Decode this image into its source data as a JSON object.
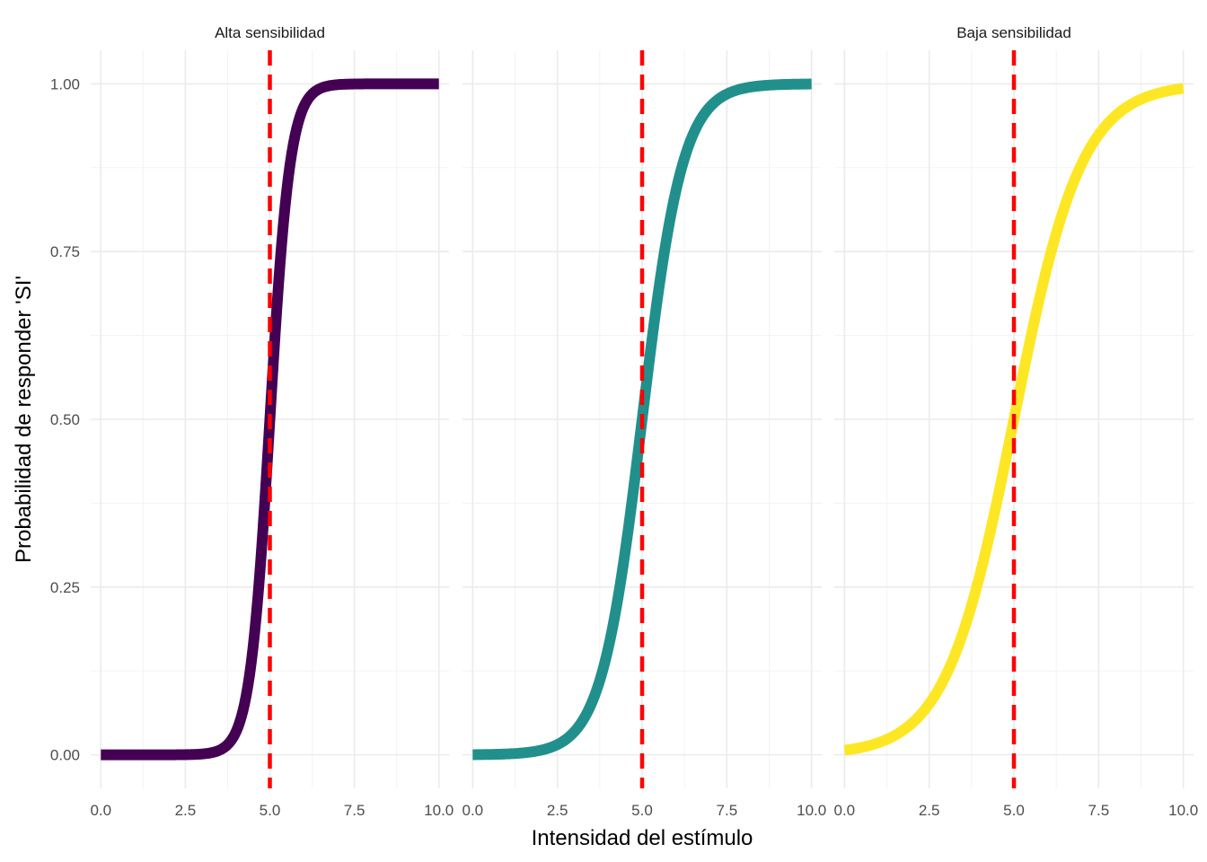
{
  "chart_data": {
    "type": "line",
    "xlabel": "Intensidad del estímulo",
    "ylabel": "Probabilidad de responder 'SI'",
    "xlim": [
      -0.3,
      10.3
    ],
    "ylim": [
      -0.05,
      1.05
    ],
    "x_ticks": [
      0,
      2.5,
      5,
      7.5,
      10
    ],
    "x_tick_labels": [
      "0.0",
      "2.5",
      "5.0",
      "7.5",
      "10.0"
    ],
    "y_ticks": [
      0,
      0.25,
      0.5,
      0.75,
      1
    ],
    "y_tick_labels": [
      "0.00",
      "0.25",
      "0.50",
      "0.75",
      "1.00"
    ],
    "grid": true,
    "threshold_x": 5,
    "threshold_color": "#ff0000",
    "panels": [
      {
        "label": "Alta sensibilidad",
        "color": "#440154",
        "midpoint": 5,
        "scale": 0.3,
        "x_range": [
          0,
          10
        ]
      },
      {
        "label": "",
        "color": "#21908c",
        "midpoint": 5,
        "scale": 0.6,
        "x_range": [
          0,
          10
        ]
      },
      {
        "label": "Baja sensibilidad",
        "color": "#fde725",
        "midpoint": 5,
        "scale": 1.0,
        "x_range": [
          0,
          10
        ]
      }
    ]
  }
}
